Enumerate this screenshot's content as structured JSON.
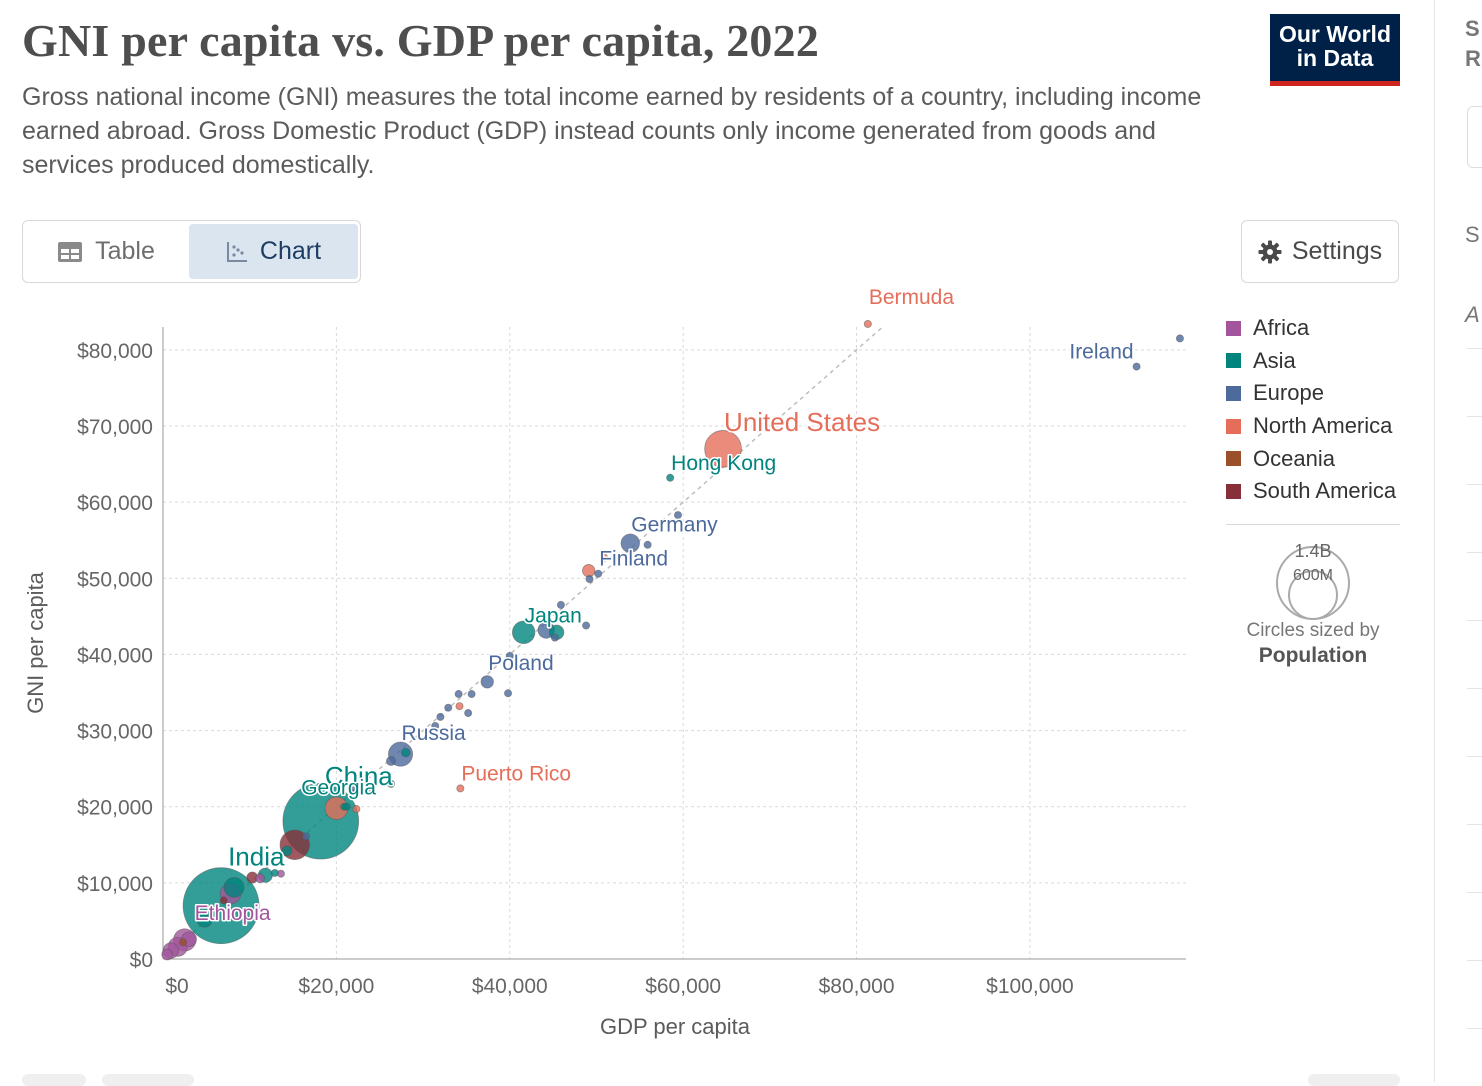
{
  "header": {
    "title": "GNI per capita vs. GDP per capita, 2022",
    "subtitle": "Gross national income (GNI) measures the total income earned by residents of a country, including income earned abroad. Gross Domestic Product (GDP) instead counts only income generated from goods and services produced domestically.",
    "logo_line1": "Our World",
    "logo_line2": "in Data"
  },
  "tabs": {
    "table_label": "Table",
    "chart_label": "Chart",
    "active": "chart"
  },
  "settings_label": "Settings",
  "right_panel": {
    "t1": "S",
    "t2": "R",
    "t3": "S",
    "t4": "A"
  },
  "colors": {
    "Africa": "#a2559c",
    "Asia": "#00847e",
    "Europe": "#4c6a9c",
    "North America": "#e56e5a",
    "Oceania": "#9a5129",
    "South America": "#883039"
  },
  "legend": [
    "Africa",
    "Asia",
    "Europe",
    "North America",
    "Oceania",
    "South America"
  ],
  "size_legend": {
    "big": "1.4B",
    "small": "600M",
    "caption": "Circles sized by",
    "variable": "Population"
  },
  "chart_data": {
    "type": "scatter",
    "title": "GNI per capita vs. GDP per capita, 2022",
    "xlabel": "GDP per capita",
    "ylabel": "GNI per capita",
    "xlim": [
      0,
      118000
    ],
    "ylim": [
      0,
      83000
    ],
    "xticks": [
      0,
      20000,
      40000,
      60000,
      80000,
      100000
    ],
    "yticks": [
      0,
      10000,
      20000,
      30000,
      40000,
      50000,
      60000,
      70000,
      80000
    ],
    "xtick_labels": [
      "$0",
      "$20,000",
      "$40,000",
      "$60,000",
      "$80,000",
      "$100,000"
    ],
    "ytick_labels": [
      "$0",
      "$10,000",
      "$20,000",
      "$30,000",
      "$40,000",
      "$50,000",
      "$60,000",
      "$70,000",
      "$80,000"
    ],
    "grid": true,
    "legend_position": "right",
    "reference_line": {
      "from": [
        0,
        0
      ],
      "to": [
        83000,
        83000
      ],
      "style": "dashed"
    },
    "points": [
      {
        "label": "China",
        "gdp": 18200,
        "gni": 18100,
        "region": "Asia",
        "pop": 1410
      },
      {
        "label": "India",
        "gdp": 6700,
        "gni": 7000,
        "region": "Asia",
        "pop": 1420
      },
      {
        "label": "Ethiopia",
        "gdp": 2500,
        "gni": 2500,
        "region": "Africa",
        "pop": 123
      },
      {
        "label": "United States",
        "gdp": 64600,
        "gni": 67000,
        "region": "North America",
        "pop": 333
      },
      {
        "label": "Hong Kong",
        "gdp": 58500,
        "gni": 63200,
        "region": "Asia",
        "pop": 7.3
      },
      {
        "label": "Germany",
        "gdp": 53900,
        "gni": 54600,
        "region": "Europe",
        "pop": 84
      },
      {
        "label": "Finland",
        "gdp": 50200,
        "gni": 50600,
        "region": "Europe",
        "pop": 5.5
      },
      {
        "label": "Japan",
        "gdp": 41600,
        "gni": 42900,
        "region": "Asia",
        "pop": 125
      },
      {
        "label": "Poland",
        "gdp": 37400,
        "gni": 36400,
        "region": "Europe",
        "pop": 38
      },
      {
        "label": "Russia",
        "gdp": 27400,
        "gni": 26900,
        "region": "Europe",
        "pop": 144
      },
      {
        "label": "Puerto Rico",
        "gdp": 34300,
        "gni": 22400,
        "region": "North America",
        "pop": 3.2
      },
      {
        "label": "Georgia",
        "gdp": 20900,
        "gni": 20000,
        "region": "Asia",
        "pop": 3.7
      },
      {
        "label": "Bermuda",
        "gdp": 81300,
        "gni": 83400,
        "region": "North America",
        "pop": 0.064
      },
      {
        "label": "Ireland",
        "gdp": 112300,
        "gni": 77800,
        "region": "Europe",
        "pop": 5.1
      },
      {
        "label": "",
        "gdp": 117300,
        "gni": 81500,
        "region": "Europe",
        "pop": 0.66
      },
      {
        "label": "",
        "gdp": 59400,
        "gni": 58300,
        "region": "Europe",
        "pop": 9
      },
      {
        "label": "",
        "gdp": 55900,
        "gni": 54400,
        "region": "Europe",
        "pop": 9
      },
      {
        "label": "",
        "gdp": 49100,
        "gni": 51000,
        "region": "North America",
        "pop": 38
      },
      {
        "label": "",
        "gdp": 50900,
        "gni": 52700,
        "region": "North America",
        "pop": 0.3
      },
      {
        "label": "",
        "gdp": 49200,
        "gni": 49900,
        "region": "Europe",
        "pop": 6
      },
      {
        "label": "",
        "gdp": 45900,
        "gni": 46500,
        "region": "Europe",
        "pop": 9
      },
      {
        "label": "",
        "gdp": 48800,
        "gni": 43800,
        "region": "Europe",
        "pop": 9
      },
      {
        "label": "",
        "gdp": 44200,
        "gni": 43200,
        "region": "Europe",
        "pop": 67
      },
      {
        "label": "",
        "gdp": 45400,
        "gni": 42900,
        "region": "Asia",
        "pop": 52
      },
      {
        "label": "",
        "gdp": 45200,
        "gni": 42200,
        "region": "Europe",
        "pop": 11
      },
      {
        "label": "",
        "gdp": 40000,
        "gni": 39800,
        "region": "Europe",
        "pop": 10
      },
      {
        "label": "",
        "gdp": 39800,
        "gni": 34900,
        "region": "Europe",
        "pop": 5
      },
      {
        "label": "",
        "gdp": 34100,
        "gni": 34800,
        "region": "Europe",
        "pop": 2
      },
      {
        "label": "",
        "gdp": 35600,
        "gni": 34800,
        "region": "Europe",
        "pop": 1.3
      },
      {
        "label": "",
        "gdp": 34200,
        "gni": 33200,
        "region": "North America",
        "pop": 0.4
      },
      {
        "label": "",
        "gdp": 32900,
        "gni": 33000,
        "region": "Europe",
        "pop": 2.8
      },
      {
        "label": "",
        "gdp": 35200,
        "gni": 32300,
        "region": "Europe",
        "pop": 5.4
      },
      {
        "label": "",
        "gdp": 32000,
        "gni": 31800,
        "region": "Europe",
        "pop": 1.9
      },
      {
        "label": "",
        "gdp": 31400,
        "gni": 30600,
        "region": "Europe",
        "pop": 1.2
      },
      {
        "label": "",
        "gdp": 28000,
        "gni": 27100,
        "region": "Asia",
        "pop": 19
      },
      {
        "label": "",
        "gdp": 26300,
        "gni": 26000,
        "region": "Europe",
        "pop": 20
      },
      {
        "label": "",
        "gdp": 26300,
        "gni": 23000,
        "region": "Asia",
        "pop": 5
      },
      {
        "label": "",
        "gdp": 24000,
        "gni": 22500,
        "region": "South America",
        "pop": 3.4
      },
      {
        "label": "",
        "gdp": 22200,
        "gni": 22300,
        "region": "Europe",
        "pop": 10
      },
      {
        "label": "",
        "gdp": 22200,
        "gni": 21700,
        "region": "South America",
        "pop": 19
      },
      {
        "label": "",
        "gdp": 21200,
        "gni": 20000,
        "region": "Asia",
        "pop": 3
      },
      {
        "label": "",
        "gdp": 22300,
        "gni": 19700,
        "region": "North America",
        "pop": 3
      },
      {
        "label": "",
        "gdp": 20000,
        "gni": 19800,
        "region": "North America",
        "pop": 127
      },
      {
        "label": "",
        "gdp": 16500,
        "gni": 16100,
        "region": "Europe",
        "pop": 6
      },
      {
        "label": "",
        "gdp": 15200,
        "gni": 15000,
        "region": "South America",
        "pop": 215
      },
      {
        "label": "",
        "gdp": 14300,
        "gni": 14200,
        "region": "Asia",
        "pop": 25
      },
      {
        "label": "",
        "gdp": 12900,
        "gni": 11300,
        "region": "Asia",
        "pop": 10
      },
      {
        "label": "",
        "gdp": 11800,
        "gni": 11000,
        "region": "Asia",
        "pop": 50
      },
      {
        "label": "",
        "gdp": 13600,
        "gni": 11200,
        "region": "Africa",
        "pop": 12
      },
      {
        "label": "",
        "gdp": 10300,
        "gni": 10700,
        "region": "South America",
        "pop": 30
      },
      {
        "label": "",
        "gdp": 11200,
        "gni": 10600,
        "region": "Africa",
        "pop": 20
      },
      {
        "label": "",
        "gdp": 8200,
        "gni": 9400,
        "region": "Asia",
        "pop": 98
      },
      {
        "label": "",
        "gdp": 7800,
        "gni": 8600,
        "region": "Africa",
        "pop": 105
      },
      {
        "label": "",
        "gdp": 7000,
        "gni": 7700,
        "region": "South America",
        "pop": 12
      },
      {
        "label": "",
        "gdp": 5600,
        "gni": 6000,
        "region": "Asia",
        "pop": 35
      },
      {
        "label": "",
        "gdp": 4800,
        "gni": 5200,
        "region": "Asia",
        "pop": 60
      },
      {
        "label": "",
        "gdp": 3000,
        "gni": 2600,
        "region": "Africa",
        "pop": 55
      },
      {
        "label": "",
        "gdp": 2300,
        "gni": 2200,
        "region": "Oceania",
        "pop": 10
      },
      {
        "label": "",
        "gdp": 1700,
        "gni": 1600,
        "region": "Africa",
        "pop": 90
      },
      {
        "label": "",
        "gdp": 900,
        "gni": 1100,
        "region": "Africa",
        "pop": 60
      },
      {
        "label": "",
        "gdp": 500,
        "gni": 600,
        "region": "Africa",
        "pop": 30
      }
    ]
  }
}
